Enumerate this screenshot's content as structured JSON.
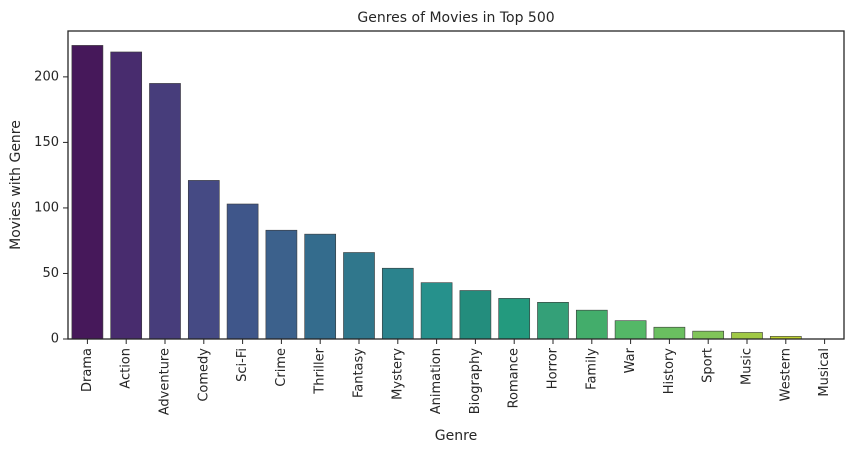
{
  "chart_data": {
    "type": "bar",
    "title": "Genres of Movies in Top 500",
    "xlabel": "Genre",
    "ylabel": "Movies with Genre",
    "categories": [
      "Drama",
      "Action",
      "Adventure",
      "Comedy",
      "Sci-Fi",
      "Crime",
      "Thriller",
      "Fantasy",
      "Mystery",
      "Animation",
      "Biography",
      "Romance",
      "Horror",
      "Family",
      "War",
      "History",
      "Sport",
      "Music",
      "Western",
      "Musical"
    ],
    "values": [
      224,
      219,
      195,
      121,
      103,
      83,
      80,
      66,
      54,
      43,
      37,
      31,
      28,
      22,
      14,
      9,
      6,
      5,
      2,
      0
    ],
    "yticks": [
      0,
      50,
      100,
      150,
      200
    ],
    "ylim": [
      0,
      235
    ],
    "grid": false,
    "palette": "viridis",
    "colors": [
      "#46185a",
      "#482c6e",
      "#473d7b",
      "#454a84",
      "#3f568a",
      "#3c618c",
      "#346c8d",
      "#30778c",
      "#2b838d",
      "#26918c",
      "#238d7d",
      "#239a7e",
      "#34a078",
      "#43ad6b",
      "#54b867",
      "#6abf60",
      "#80c459",
      "#a0c945",
      "#bfd230",
      "#dcdd21"
    ]
  }
}
